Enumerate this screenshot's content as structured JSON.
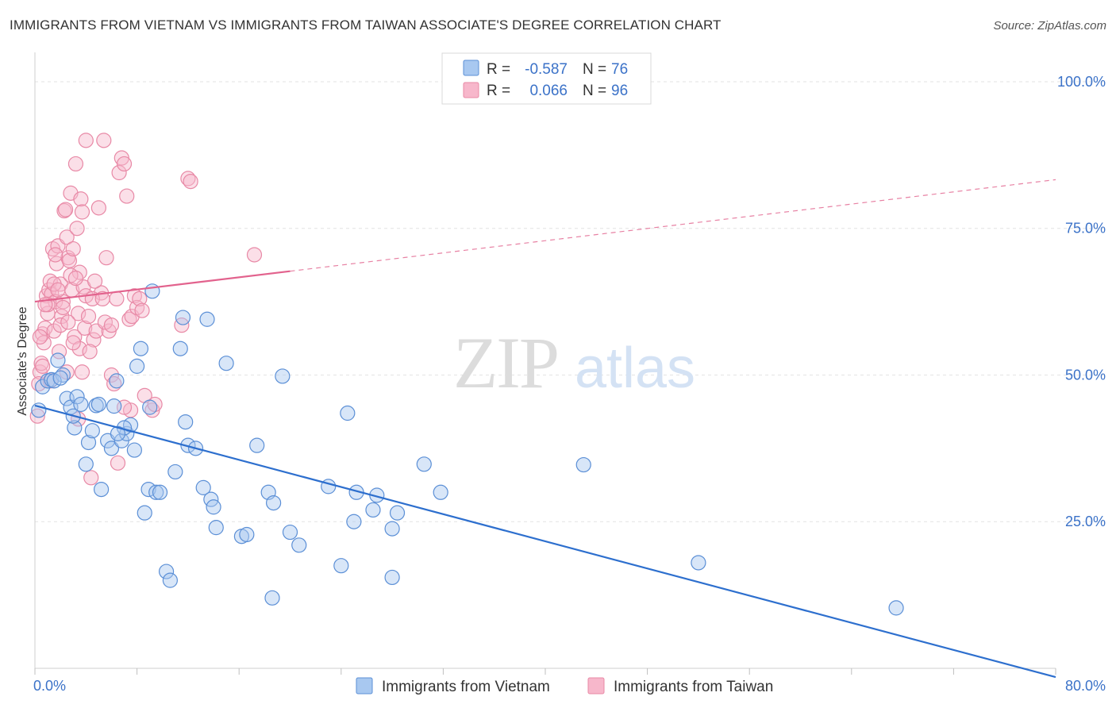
{
  "title": "IMMIGRANTS FROM VIETNAM VS IMMIGRANTS FROM TAIWAN ASSOCIATE'S DEGREE CORRELATION CHART",
  "source": "Source: ZipAtlas.com",
  "watermark": {
    "zip": "ZIP",
    "atlas": "atlas"
  },
  "stats": [
    {
      "r_label": "R =",
      "r_value": "-0.587",
      "n_label": "N =",
      "n_value": "76"
    },
    {
      "r_label": "R =",
      "r_value": "0.066",
      "n_label": "N =",
      "n_value": "96"
    }
  ],
  "colors": {
    "vietnam_fill": "#a8c8f0",
    "vietnam_stroke": "#5b8fd6",
    "vietnam_line": "#2d6fce",
    "taiwan_fill": "#f7b7cb",
    "taiwan_stroke": "#e889a6",
    "taiwan_line": "#e2628d",
    "value_text": "#3b72c8",
    "grid": "#e3e3e3"
  },
  "chart_data": {
    "type": "scatter",
    "title": "IMMIGRANTS FROM VIETNAM VS IMMIGRANTS FROM TAIWAN ASSOCIATE'S DEGREE CORRELATION CHART",
    "xlabel": "",
    "ylabel": "Associate's Degree",
    "xlim": [
      0,
      80
    ],
    "ylim": [
      0,
      105
    ],
    "x_tick_labels": [
      "0.0%",
      "80.0%"
    ],
    "y_ticks": [
      25,
      50,
      75,
      100
    ],
    "y_tick_labels": [
      "25.0%",
      "50.0%",
      "75.0%",
      "100.0%"
    ],
    "grid": true,
    "legend_position": "bottom-center",
    "series": [
      {
        "name": "Immigrants from Vietnam",
        "r": -0.587,
        "n": 76,
        "trend": {
          "x0": 0,
          "y0": 44.8,
          "x1": 80,
          "y1": -1.5,
          "solid_to": 80
        },
        "points": [
          [
            0.3,
            44.0
          ],
          [
            0.6,
            48.0
          ],
          [
            1.0,
            49.0
          ],
          [
            1.3,
            49.2
          ],
          [
            1.8,
            52.5
          ],
          [
            2.2,
            50.0
          ],
          [
            2.5,
            46.0
          ],
          [
            2.8,
            44.5
          ],
          [
            3.1,
            41.0
          ],
          [
            3.3,
            46.3
          ],
          [
            3.6,
            45.0
          ],
          [
            4.0,
            34.8
          ],
          [
            4.2,
            38.5
          ],
          [
            4.5,
            40.5
          ],
          [
            4.8,
            44.8
          ],
          [
            5.2,
            30.5
          ],
          [
            5.7,
            38.8
          ],
          [
            6.0,
            37.5
          ],
          [
            6.2,
            44.7
          ],
          [
            6.4,
            49.0
          ],
          [
            6.8,
            38.8
          ],
          [
            7.2,
            40.0
          ],
          [
            7.5,
            41.5
          ],
          [
            7.8,
            37.2
          ],
          [
            8.0,
            51.5
          ],
          [
            8.3,
            54.5
          ],
          [
            8.6,
            26.5
          ],
          [
            8.9,
            30.5
          ],
          [
            9.2,
            64.3
          ],
          [
            9.5,
            30.0
          ],
          [
            9.8,
            30.0
          ],
          [
            10.3,
            16.5
          ],
          [
            10.6,
            15.0
          ],
          [
            11.0,
            33.5
          ],
          [
            11.4,
            54.5
          ],
          [
            11.6,
            59.8
          ],
          [
            11.8,
            42.0
          ],
          [
            12.0,
            38.0
          ],
          [
            12.6,
            37.5
          ],
          [
            13.2,
            30.8
          ],
          [
            13.5,
            59.5
          ],
          [
            13.8,
            28.8
          ],
          [
            14.0,
            27.5
          ],
          [
            14.2,
            24.0
          ],
          [
            15.0,
            52.0
          ],
          [
            16.2,
            22.5
          ],
          [
            16.6,
            22.8
          ],
          [
            17.4,
            38.0
          ],
          [
            18.3,
            30.0
          ],
          [
            18.7,
            28.2
          ],
          [
            18.6,
            12.0
          ],
          [
            19.4,
            49.8
          ],
          [
            20.0,
            23.2
          ],
          [
            20.7,
            21.0
          ],
          [
            23.0,
            31.0
          ],
          [
            24.0,
            17.5
          ],
          [
            24.5,
            43.5
          ],
          [
            25.0,
            25.0
          ],
          [
            25.2,
            30.0
          ],
          [
            26.5,
            27.0
          ],
          [
            26.8,
            29.5
          ],
          [
            28.0,
            23.8
          ],
          [
            28.0,
            15.5
          ],
          [
            28.4,
            26.5
          ],
          [
            30.5,
            34.8
          ],
          [
            31.8,
            30.0
          ],
          [
            43.0,
            34.7
          ],
          [
            52.0,
            18.0
          ],
          [
            67.5,
            10.3
          ],
          [
            1.5,
            49.0
          ],
          [
            2.0,
            49.5
          ],
          [
            3.0,
            43.0
          ],
          [
            5.0,
            45.0
          ],
          [
            7.0,
            41.0
          ],
          [
            9.0,
            44.5
          ],
          [
            6.5,
            40.0
          ]
        ]
      },
      {
        "name": "Immigrants from Taiwan",
        "r": 0.066,
        "n": 96,
        "trend": {
          "x0": 0,
          "y0": 62.5,
          "x1": 80,
          "y1": 83.3,
          "solid_to": 20
        },
        "points": [
          [
            0.2,
            43.0
          ],
          [
            0.4,
            50.5
          ],
          [
            0.5,
            52.0
          ],
          [
            0.6,
            57.0
          ],
          [
            0.7,
            55.5
          ],
          [
            0.8,
            58.0
          ],
          [
            0.9,
            63.5
          ],
          [
            1.0,
            60.5
          ],
          [
            1.1,
            64.5
          ],
          [
            1.2,
            66.0
          ],
          [
            1.3,
            63.8
          ],
          [
            1.4,
            71.5
          ],
          [
            1.5,
            57.5
          ],
          [
            1.6,
            62.5
          ],
          [
            1.7,
            69.0
          ],
          [
            1.8,
            72.0
          ],
          [
            1.9,
            54.0
          ],
          [
            2.0,
            65.5
          ],
          [
            2.1,
            60.0
          ],
          [
            2.2,
            62.5
          ],
          [
            2.3,
            78.0
          ],
          [
            2.4,
            78.2
          ],
          [
            2.5,
            73.5
          ],
          [
            2.6,
            70.0
          ],
          [
            2.7,
            69.5
          ],
          [
            2.8,
            81.0
          ],
          [
            2.9,
            64.5
          ],
          [
            3.0,
            71.5
          ],
          [
            3.1,
            56.5
          ],
          [
            3.2,
            86.0
          ],
          [
            3.3,
            75.0
          ],
          [
            3.4,
            60.5
          ],
          [
            3.5,
            54.5
          ],
          [
            3.6,
            80.0
          ],
          [
            3.7,
            77.8
          ],
          [
            3.8,
            65.0
          ],
          [
            3.9,
            58.0
          ],
          [
            4.0,
            90.0
          ],
          [
            4.2,
            60.0
          ],
          [
            4.4,
            32.5
          ],
          [
            4.6,
            56.0
          ],
          [
            4.8,
            57.5
          ],
          [
            5.0,
            78.5
          ],
          [
            5.2,
            64.0
          ],
          [
            5.4,
            90.0
          ],
          [
            5.6,
            70.0
          ],
          [
            5.8,
            57.5
          ],
          [
            6.0,
            50.0
          ],
          [
            6.2,
            48.5
          ],
          [
            6.4,
            63.0
          ],
          [
            6.6,
            84.5
          ],
          [
            6.8,
            87.0
          ],
          [
            7.0,
            86.0
          ],
          [
            7.2,
            80.5
          ],
          [
            7.4,
            59.5
          ],
          [
            7.5,
            44.0
          ],
          [
            7.6,
            60.0
          ],
          [
            7.8,
            63.5
          ],
          [
            8.0,
            61.5
          ],
          [
            8.2,
            63.0
          ],
          [
            8.4,
            61.0
          ],
          [
            8.6,
            46.5
          ],
          [
            9.2,
            44.0
          ],
          [
            9.4,
            45.0
          ],
          [
            11.5,
            58.5
          ],
          [
            12.0,
            83.5
          ],
          [
            12.2,
            83.0
          ],
          [
            17.2,
            70.5
          ],
          [
            0.3,
            48.5
          ],
          [
            0.6,
            51.5
          ],
          [
            1.0,
            62.0
          ],
          [
            1.5,
            65.5
          ],
          [
            2.0,
            58.5
          ],
          [
            2.5,
            50.5
          ],
          [
            3.0,
            55.5
          ],
          [
            3.5,
            67.5
          ],
          [
            4.0,
            63.5
          ],
          [
            4.5,
            63.0
          ],
          [
            5.5,
            59.0
          ],
          [
            6.5,
            35.0
          ],
          [
            7.0,
            44.5
          ],
          [
            1.2,
            49.0
          ],
          [
            1.8,
            64.5
          ],
          [
            2.2,
            61.5
          ],
          [
            2.8,
            67.0
          ],
          [
            3.2,
            66.5
          ],
          [
            3.7,
            50.5
          ],
          [
            4.3,
            54.0
          ],
          [
            0.8,
            62.0
          ],
          [
            1.6,
            70.5
          ],
          [
            2.6,
            59.0
          ],
          [
            3.4,
            42.5
          ],
          [
            4.7,
            66.0
          ],
          [
            5.3,
            63.0
          ],
          [
            6.0,
            58.5
          ],
          [
            0.4,
            56.5
          ]
        ]
      }
    ]
  }
}
